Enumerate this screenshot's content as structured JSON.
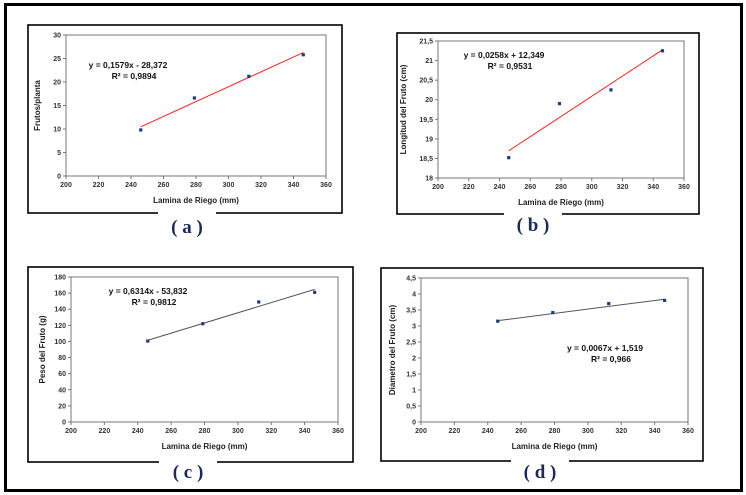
{
  "chart_data": [
    {
      "type": "scatter",
      "panel_label": "( a )",
      "xlabel": "Lamina de Riego (mm)",
      "ylabel": "Frutos/planta",
      "xlim": [
        200,
        360
      ],
      "xticks": [
        200,
        220,
        240,
        260,
        280,
        300,
        320,
        340,
        360
      ],
      "ylim": [
        0,
        30
      ],
      "yticks": [
        "0",
        "5",
        "10",
        "15",
        "20",
        "25",
        "30"
      ],
      "x": [
        246,
        279,
        312.5,
        346
      ],
      "y": [
        9.8,
        16.6,
        21.2,
        25.8
      ],
      "trendline": {
        "slope": 0.1579,
        "intercept": -28.372,
        "color": "#ff2020"
      },
      "equation": "y = 0,1579x - 28,372",
      "r2": "R² = 0,9894",
      "point_color": "#1f3c78"
    },
    {
      "type": "scatter",
      "panel_label": "( b )",
      "xlabel": "Lamina de Riego (mm)",
      "ylabel": "Longitud del Fruto (cm)",
      "xlim": [
        200,
        360
      ],
      "xticks": [
        200,
        220,
        240,
        260,
        280,
        300,
        320,
        340,
        360
      ],
      "ylim": [
        18,
        21.5
      ],
      "yticks": [
        "18",
        "18,5",
        "19",
        "19,5",
        "20",
        "20,5",
        "21",
        "21,5"
      ],
      "x": [
        246,
        279,
        312.5,
        346
      ],
      "y": [
        18.52,
        19.9,
        20.25,
        21.25
      ],
      "trendline": {
        "slope": 0.0258,
        "intercept": 12.349,
        "color": "#ff2020"
      },
      "equation": "y = 0,0258x + 12,349",
      "r2": "R² = 0,9531",
      "point_color": "#1f3c78"
    },
    {
      "type": "scatter",
      "panel_label": "( c )",
      "xlabel": "Lamina de Riego (mm)",
      "ylabel": "Peso del Fruto (g)",
      "xlim": [
        200,
        360
      ],
      "xticks": [
        200,
        220,
        240,
        260,
        280,
        300,
        320,
        340,
        360
      ],
      "ylim": [
        0,
        180
      ],
      "yticks": [
        "0",
        "20",
        "40",
        "60",
        "80",
        "100",
        "120",
        "140",
        "160",
        "180"
      ],
      "x": [
        246,
        279,
        312.5,
        346
      ],
      "y": [
        100.5,
        122,
        149,
        161
      ],
      "trendline": {
        "slope": 0.6314,
        "intercept": -53.832,
        "color": "#555555"
      },
      "equation": "y = 0,6314x - 53,832",
      "r2": "R² = 0,9812",
      "point_color": "#1f3c78"
    },
    {
      "type": "scatter",
      "panel_label": "( d )",
      "xlabel": "Lamina de Riego (mm)",
      "ylabel": "Diametro del Fruto (cm)",
      "xlim": [
        200,
        360
      ],
      "xticks": [
        200,
        220,
        240,
        260,
        280,
        300,
        320,
        340,
        360
      ],
      "ylim": [
        0,
        4.5
      ],
      "yticks": [
        "0",
        "0,5",
        "1",
        "1,5",
        "2",
        "2,5",
        "3",
        "3,5",
        "4",
        "4,5"
      ],
      "x": [
        246,
        279,
        312.5,
        346
      ],
      "y": [
        3.15,
        3.42,
        3.7,
        3.8
      ],
      "trendline": {
        "slope": 0.0067,
        "intercept": 1.519,
        "color": "#555555"
      },
      "equation": "y = 0,0067x + 1,519",
      "r2": "R² = 0,966",
      "point_color": "#1f3c78"
    }
  ]
}
